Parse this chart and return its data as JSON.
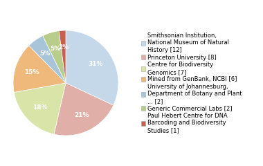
{
  "slices": [
    {
      "label": "Smithsonian Institution,\nNational Museum of Natural\nHistory [12]",
      "value": 31,
      "color": "#c5d8ea"
    },
    {
      "label": "Princeton University [8]",
      "value": 21,
      "color": "#e0afa8"
    },
    {
      "label": "Centre for Biodiversity\nGenomics [7]",
      "value": 18,
      "color": "#d9e4a8"
    },
    {
      "label": "Mined from GenBank, NCBI [6]",
      "value": 15,
      "color": "#f0b97c"
    },
    {
      "label": "University of Johannesburg,\nDepartment of Botany and Plant\n... [2]",
      "value": 5,
      "color": "#a8c4d8"
    },
    {
      "label": "Generic Commercial Labs [2]",
      "value": 5,
      "color": "#b8cc8c"
    },
    {
      "label": "Paul Hebert Centre for DNA\nBarcoding and Biodiversity\nStudies [1]",
      "value": 2,
      "color": "#c86050"
    }
  ],
  "pct_labels": [
    "31%",
    "21%",
    "18%",
    "15%",
    "5%",
    "5%",
    "2%"
  ],
  "startangle": 90,
  "background_color": "#ffffff",
  "text_fontsize": 6.5,
  "legend_fontsize": 6.0
}
